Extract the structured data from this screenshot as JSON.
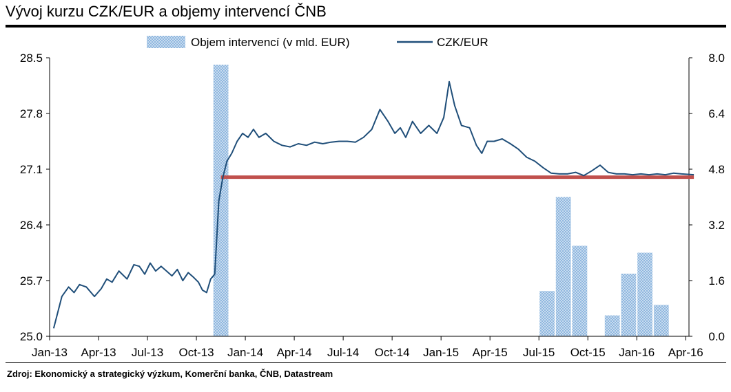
{
  "title": "Vývoj kurzu CZK/EUR a objemy intervencí ČNB",
  "source": "Zdroj: Ekonomický a strategický výzkum, Komerční banka, ČNB, Datastream",
  "chart_data": {
    "type": "bar+line",
    "title": "Vývoj kurzu CZK/EUR a objemy intervencí ČNB",
    "legend_position": "top",
    "x_ticks": [
      "Jan-13",
      "Apr-13",
      "Jul-13",
      "Oct-13",
      "Jan-14",
      "Apr-14",
      "Jul-14",
      "Oct-14",
      "Jan-15",
      "Apr-15",
      "Jul-15",
      "Oct-15",
      "Jan-16",
      "Apr-16"
    ],
    "y_left": {
      "range": [
        25.0,
        28.5
      ],
      "ticks": [
        "25.0",
        "25.7",
        "26.4",
        "27.1",
        "27.8",
        "28.5"
      ]
    },
    "y_right": {
      "range": [
        0.0,
        8.0
      ],
      "ticks": [
        "0.0",
        "1.6",
        "3.2",
        "4.8",
        "6.4",
        "8.0"
      ]
    },
    "grid": false,
    "series": [
      {
        "name": "Objem intervencí (v mld. EUR)",
        "kind": "bar",
        "axis": "right",
        "color": "#9dc3e6",
        "values": [
          {
            "period": "Nov-13",
            "value": 7.8
          },
          {
            "period": "Jul-15",
            "value": 1.3
          },
          {
            "period": "Aug-15",
            "value": 4.0
          },
          {
            "period": "Sep-15",
            "value": 2.6
          },
          {
            "period": "Nov-15",
            "value": 0.6
          },
          {
            "period": "Dec-15",
            "value": 1.8
          },
          {
            "period": "Jan-16",
            "value": 2.4
          },
          {
            "period": "Feb-16",
            "value": 0.9
          }
        ]
      },
      {
        "name": "CZK/EUR",
        "kind": "line",
        "axis": "left",
        "color": "#1f4e79",
        "values": [
          [
            "Jan-13",
            25.1
          ],
          [
            "Jan-13",
            25.5
          ],
          [
            "Feb-13",
            25.62
          ],
          [
            "Feb-13",
            25.55
          ],
          [
            "Feb-13",
            25.65
          ],
          [
            "Mar-13",
            25.62
          ],
          [
            "Mar-13",
            25.5
          ],
          [
            "Apr-13",
            25.6
          ],
          [
            "Apr-13",
            25.72
          ],
          [
            "Apr-13",
            25.68
          ],
          [
            "May-13",
            25.82
          ],
          [
            "May-13",
            25.72
          ],
          [
            "Jun-13",
            25.9
          ],
          [
            "Jun-13",
            25.88
          ],
          [
            "Jun-13",
            25.78
          ],
          [
            "Jul-13",
            25.92
          ],
          [
            "Jul-13",
            25.82
          ],
          [
            "Jul-13",
            25.88
          ],
          [
            "Aug-13",
            25.82
          ],
          [
            "Aug-13",
            25.76
          ],
          [
            "Aug-13",
            25.84
          ],
          [
            "Sep-13",
            25.7
          ],
          [
            "Sep-13",
            25.8
          ],
          [
            "Sep-13",
            25.74
          ],
          [
            "Oct-13",
            25.68
          ],
          [
            "Oct-13",
            25.58
          ],
          [
            "Oct-13",
            25.55
          ],
          [
            "Oct-13",
            25.72
          ],
          [
            "Nov-13",
            25.78
          ],
          [
            "Nov-13",
            26.7
          ],
          [
            "Nov-13",
            27.0
          ],
          [
            "Nov-13",
            27.2
          ],
          [
            "Dec-13",
            27.3
          ],
          [
            "Dec-13",
            27.45
          ],
          [
            "Dec-13",
            27.55
          ],
          [
            "Jan-14",
            27.5
          ],
          [
            "Jan-14",
            27.6
          ],
          [
            "Jan-14",
            27.5
          ],
          [
            "Feb-14",
            27.55
          ],
          [
            "Feb-14",
            27.45
          ],
          [
            "Mar-14",
            27.4
          ],
          [
            "Mar-14",
            27.38
          ],
          [
            "Apr-14",
            27.42
          ],
          [
            "Apr-14",
            27.4
          ],
          [
            "May-14",
            27.44
          ],
          [
            "May-14",
            27.42
          ],
          [
            "Jun-14",
            27.44
          ],
          [
            "Jun-14",
            27.45
          ],
          [
            "Jul-14",
            27.45
          ],
          [
            "Jul-14",
            27.44
          ],
          [
            "Aug-14",
            27.5
          ],
          [
            "Aug-14",
            27.6
          ],
          [
            "Sep-14",
            27.85
          ],
          [
            "Sep-14",
            27.7
          ],
          [
            "Oct-14",
            27.55
          ],
          [
            "Oct-14",
            27.62
          ],
          [
            "Oct-14",
            27.5
          ],
          [
            "Nov-14",
            27.7
          ],
          [
            "Nov-14",
            27.55
          ],
          [
            "Dec-14",
            27.65
          ],
          [
            "Dec-14",
            27.55
          ],
          [
            "Jan-15",
            27.75
          ],
          [
            "Jan-15",
            28.2
          ],
          [
            "Jan-15",
            27.9
          ],
          [
            "Feb-15",
            27.65
          ],
          [
            "Feb-15",
            27.62
          ],
          [
            "Mar-15",
            27.4
          ],
          [
            "Mar-15",
            27.3
          ],
          [
            "Mar-15",
            27.45
          ],
          [
            "Apr-15",
            27.45
          ],
          [
            "Apr-15",
            27.48
          ],
          [
            "May-15",
            27.42
          ],
          [
            "May-15",
            27.35
          ],
          [
            "Jun-15",
            27.25
          ],
          [
            "Jun-15",
            27.2
          ],
          [
            "Jul-15",
            27.12
          ],
          [
            "Jul-15",
            27.05
          ],
          [
            "Aug-15",
            27.04
          ],
          [
            "Aug-15",
            27.04
          ],
          [
            "Sep-15",
            27.06
          ],
          [
            "Sep-15",
            27.02
          ],
          [
            "Oct-15",
            27.08
          ],
          [
            "Oct-15",
            27.15
          ],
          [
            "Nov-15",
            27.06
          ],
          [
            "Nov-15",
            27.04
          ],
          [
            "Dec-15",
            27.04
          ],
          [
            "Dec-15",
            27.03
          ],
          [
            "Jan-16",
            27.04
          ],
          [
            "Jan-16",
            27.03
          ],
          [
            "Feb-16",
            27.04
          ],
          [
            "Feb-16",
            27.03
          ],
          [
            "Mar-16",
            27.05
          ],
          [
            "Mar-16",
            27.04
          ],
          [
            "Apr-16",
            27.03
          ]
        ]
      },
      {
        "name": "",
        "kind": "hline",
        "axis": "left",
        "color": "#c0504d",
        "value": 27.0,
        "from": "Nov-13",
        "to": "Apr-16"
      }
    ]
  }
}
